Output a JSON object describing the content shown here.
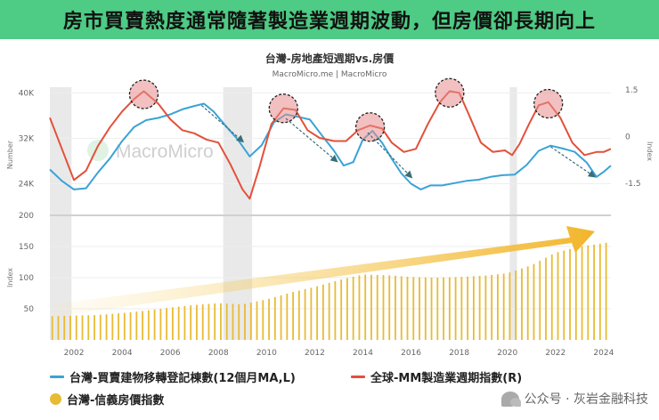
{
  "banner": {
    "text": "房市買賣熱度通常隨著製造業週期波動，但房價卻長期向上"
  },
  "chart": {
    "title": "台灣-房地產短週期vs.房價",
    "subtitle": "MacroMicro.me | MacroMicro",
    "watermark": "MacroMicro",
    "left_axis_label": "Number",
    "right_axis_label": "Index",
    "bottom_axis_label": "Index"
  },
  "legend": {
    "blue": "台灣-買賣建物移轉登記棟數(12個月MA,L)",
    "red": "全球-MM製造業週期指數(R)",
    "gold": "台灣-信義房價指數"
  },
  "footer": {
    "watermark": "公众号 · 灰岩金融科技"
  },
  "colors": {
    "banner": "#4ecb84",
    "blue": "#3aa3d6",
    "red": "#e2513a",
    "gold": "#e8bb35",
    "band": "#e9e9e9"
  },
  "chart_data": [
    {
      "type": "line",
      "title": "台灣-房地產短週期vs.房價",
      "x_range": [
        2001,
        2024.3
      ],
      "left_axis": {
        "ticks": [
          24000,
          32000,
          40000
        ],
        "tick_labels": [
          "24K",
          "32K",
          "40K"
        ],
        "ylim": [
          20000,
          41000
        ]
      },
      "right_axis": {
        "ticks": [
          -1.5,
          0,
          1.5
        ],
        "tick_labels": [
          "-1.5",
          "0",
          "1.5"
        ],
        "ylim": [
          -2.25,
          1.58
        ]
      },
      "x_ticks": [
        2002,
        2004,
        2006,
        2008,
        2010,
        2012,
        2014,
        2016,
        2018,
        2020,
        2022,
        2024
      ],
      "recession_bands": [
        [
          2001.0,
          2001.9
        ],
        [
          2008.2,
          2009.4
        ],
        [
          2020.1,
          2020.4
        ]
      ],
      "series": [
        {
          "name": "台灣-買賣建物移轉登記棟數(12個月MA,L)",
          "axis": "left",
          "color": "blue",
          "x": [
            2001.0,
            2001.5,
            2002.0,
            2002.5,
            2003.0,
            2003.5,
            2004.0,
            2004.5,
            2005.0,
            2005.5,
            2006.0,
            2006.5,
            2007.0,
            2007.4,
            2007.8,
            2008.3,
            2008.8,
            2009.3,
            2009.8,
            2010.3,
            2010.8,
            2011.3,
            2011.8,
            2012.3,
            2012.8,
            2013.2,
            2013.6,
            2014.0,
            2014.4,
            2014.8,
            2015.2,
            2015.6,
            2016.0,
            2016.4,
            2016.8,
            2017.3,
            2017.8,
            2018.3,
            2018.8,
            2019.3,
            2019.8,
            2020.3,
            2020.8,
            2021.3,
            2021.8,
            2022.3,
            2022.8,
            2023.3,
            2023.7,
            2024.0,
            2024.3
          ],
          "values": [
            26500,
            24500,
            23000,
            23200,
            26000,
            28500,
            31500,
            34000,
            35200,
            35600,
            36200,
            37100,
            37700,
            38100,
            36700,
            34200,
            31800,
            28800,
            30800,
            34800,
            36200,
            35800,
            35300,
            32500,
            29800,
            27200,
            27800,
            31800,
            33300,
            31200,
            28400,
            25800,
            24000,
            23000,
            23700,
            23700,
            24100,
            24500,
            24700,
            25200,
            25500,
            25600,
            27300,
            29800,
            30700,
            30200,
            29600,
            27700,
            25200,
            26100,
            27200
          ]
        },
        {
          "name": "全球-MM製造業週期指數(R)",
          "axis": "right",
          "color": "red",
          "x": [
            2001.0,
            2001.5,
            2002.0,
            2002.5,
            2003.0,
            2003.5,
            2004.0,
            2004.5,
            2004.9,
            2005.5,
            2006.0,
            2006.5,
            2007.0,
            2007.5,
            2008.0,
            2008.5,
            2009.0,
            2009.3,
            2009.7,
            2010.2,
            2010.7,
            2011.2,
            2011.7,
            2012.2,
            2012.8,
            2013.3,
            2013.8,
            2014.3,
            2014.8,
            2015.2,
            2015.7,
            2016.2,
            2016.7,
            2017.2,
            2017.6,
            2018.0,
            2018.4,
            2018.9,
            2019.4,
            2019.9,
            2020.2,
            2020.5,
            2020.9,
            2021.3,
            2021.7,
            2022.2,
            2022.7,
            2023.2,
            2023.7,
            2024.0,
            2024.3
          ],
          "values": [
            0.6,
            -0.4,
            -1.4,
            -1.1,
            -0.3,
            0.3,
            0.8,
            1.2,
            1.45,
            1.05,
            0.55,
            0.2,
            0.1,
            -0.1,
            -0.2,
            -0.9,
            -1.7,
            -2.0,
            -1.0,
            0.4,
            0.9,
            0.85,
            0.2,
            -0.05,
            -0.15,
            -0.15,
            0.2,
            0.35,
            0.25,
            -0.2,
            -0.5,
            -0.4,
            0.4,
            1.1,
            1.45,
            1.4,
            0.7,
            -0.2,
            -0.5,
            -0.45,
            -0.6,
            -0.25,
            0.4,
            1.0,
            1.1,
            0.6,
            -0.2,
            -0.6,
            -0.5,
            -0.5,
            -0.4
          ]
        }
      ]
    },
    {
      "type": "bar",
      "title": "台灣-信義房價指數",
      "ylim": [
        0,
        200
      ],
      "y_ticks": [
        50,
        100,
        150,
        200
      ],
      "series": [
        {
          "name": "台灣-信義房價指數",
          "color": "gold",
          "x": [
            2001.0,
            2002.0,
            2003.0,
            2004.0,
            2005.0,
            2006.0,
            2007.0,
            2008.0,
            2009.0,
            2010.0,
            2011.0,
            2012.0,
            2013.0,
            2014.0,
            2015.0,
            2016.0,
            2017.0,
            2018.0,
            2019.0,
            2020.0,
            2021.0,
            2022.0,
            2023.0,
            2024.0,
            2024.3
          ],
          "values": [
            38,
            39,
            40,
            43,
            47,
            52,
            56,
            59,
            57,
            65,
            76,
            85,
            96,
            105,
            104,
            101,
            100,
            101,
            103,
            107,
            120,
            140,
            150,
            155,
            158
          ]
        }
      ]
    }
  ]
}
